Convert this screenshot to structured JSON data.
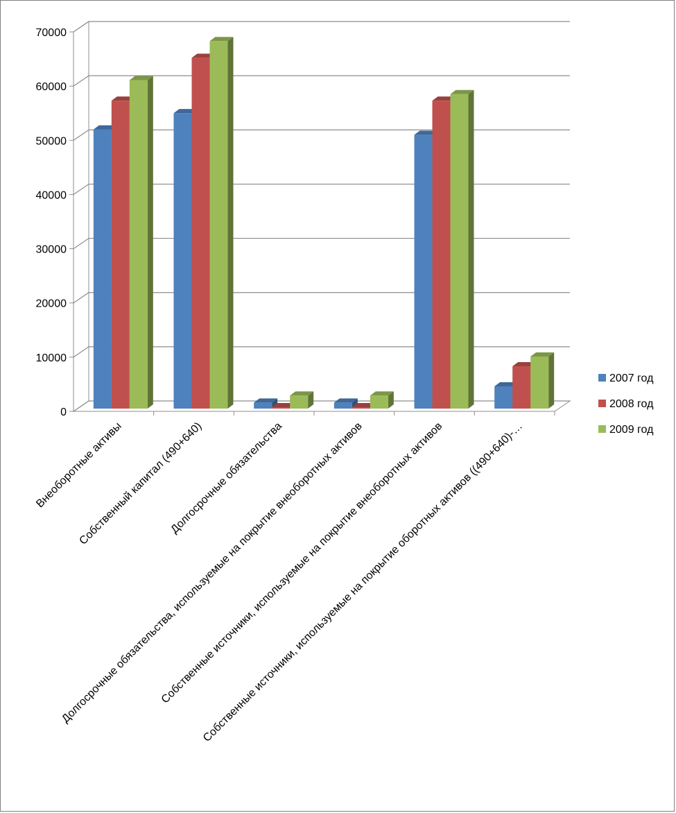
{
  "chart_data": {
    "type": "bar",
    "style": "3d-clustered-column",
    "categories": [
      "Внеоборотные активы",
      "Собственный капитал (490+640)",
      "Долгосрочные обязательства",
      "Долгосрочные обязательства, используемые на покрытие внеоборотных активов",
      "Собственные источники, используемые на покрытие внеоборотных активов",
      "Собственные источники, используемые на покрытие оборотных активов ((490+640)-…"
    ],
    "series": [
      {
        "name": "2007 год",
        "color": "#4f81bd",
        "values": [
          51500,
          54500,
          1100,
          1100,
          50500,
          4100
        ]
      },
      {
        "name": "2008 год",
        "color": "#c0504d",
        "values": [
          56800,
          64700,
          200,
          200,
          56800,
          7800
        ]
      },
      {
        "name": "2009 год",
        "color": "#9bbb59",
        "values": [
          60600,
          67800,
          2400,
          2400,
          58000,
          9600
        ]
      }
    ],
    "ylim": [
      0,
      70000
    ],
    "yticks": [
      "0",
      "10000",
      "20000",
      "30000",
      "40000",
      "50000",
      "60000",
      "70000"
    ],
    "grid": true,
    "legend_position": "right"
  }
}
